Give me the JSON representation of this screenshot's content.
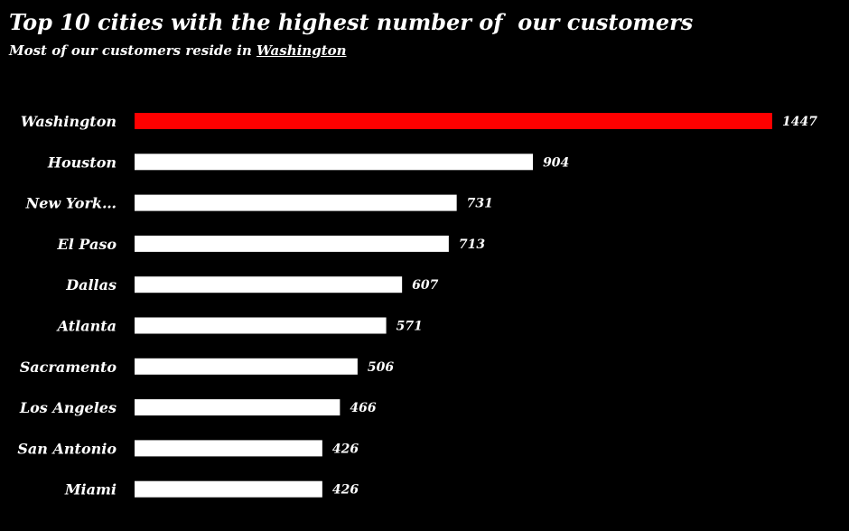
{
  "header": {
    "title": "Top 10 cities with the highest number of  our customers",
    "subtitle_prefix": "Most of our customers reside in ",
    "subtitle_highlight": "Washington"
  },
  "colors": {
    "background": "#000000",
    "highlight_bar": "#ff0000",
    "bar": "#ffffff",
    "text": "#ffffff"
  },
  "chart_data": {
    "type": "bar",
    "orientation": "horizontal",
    "title": "Top 10 cities with the highest number of  our customers",
    "subtitle": "Most of our customers reside in Washington",
    "categories": [
      "Washington",
      "Houston",
      "New York…",
      "El Paso",
      "Dallas",
      "Atlanta",
      "Sacramento",
      "Los Angeles",
      "San Antonio",
      "Miami"
    ],
    "values": [
      1447,
      904,
      731,
      713,
      607,
      571,
      506,
      466,
      426,
      426
    ],
    "highlight_index": 0,
    "xlabel": "",
    "ylabel": "",
    "xlim": [
      0,
      1447
    ],
    "grid": false,
    "legend": "none",
    "data_labels": true
  }
}
